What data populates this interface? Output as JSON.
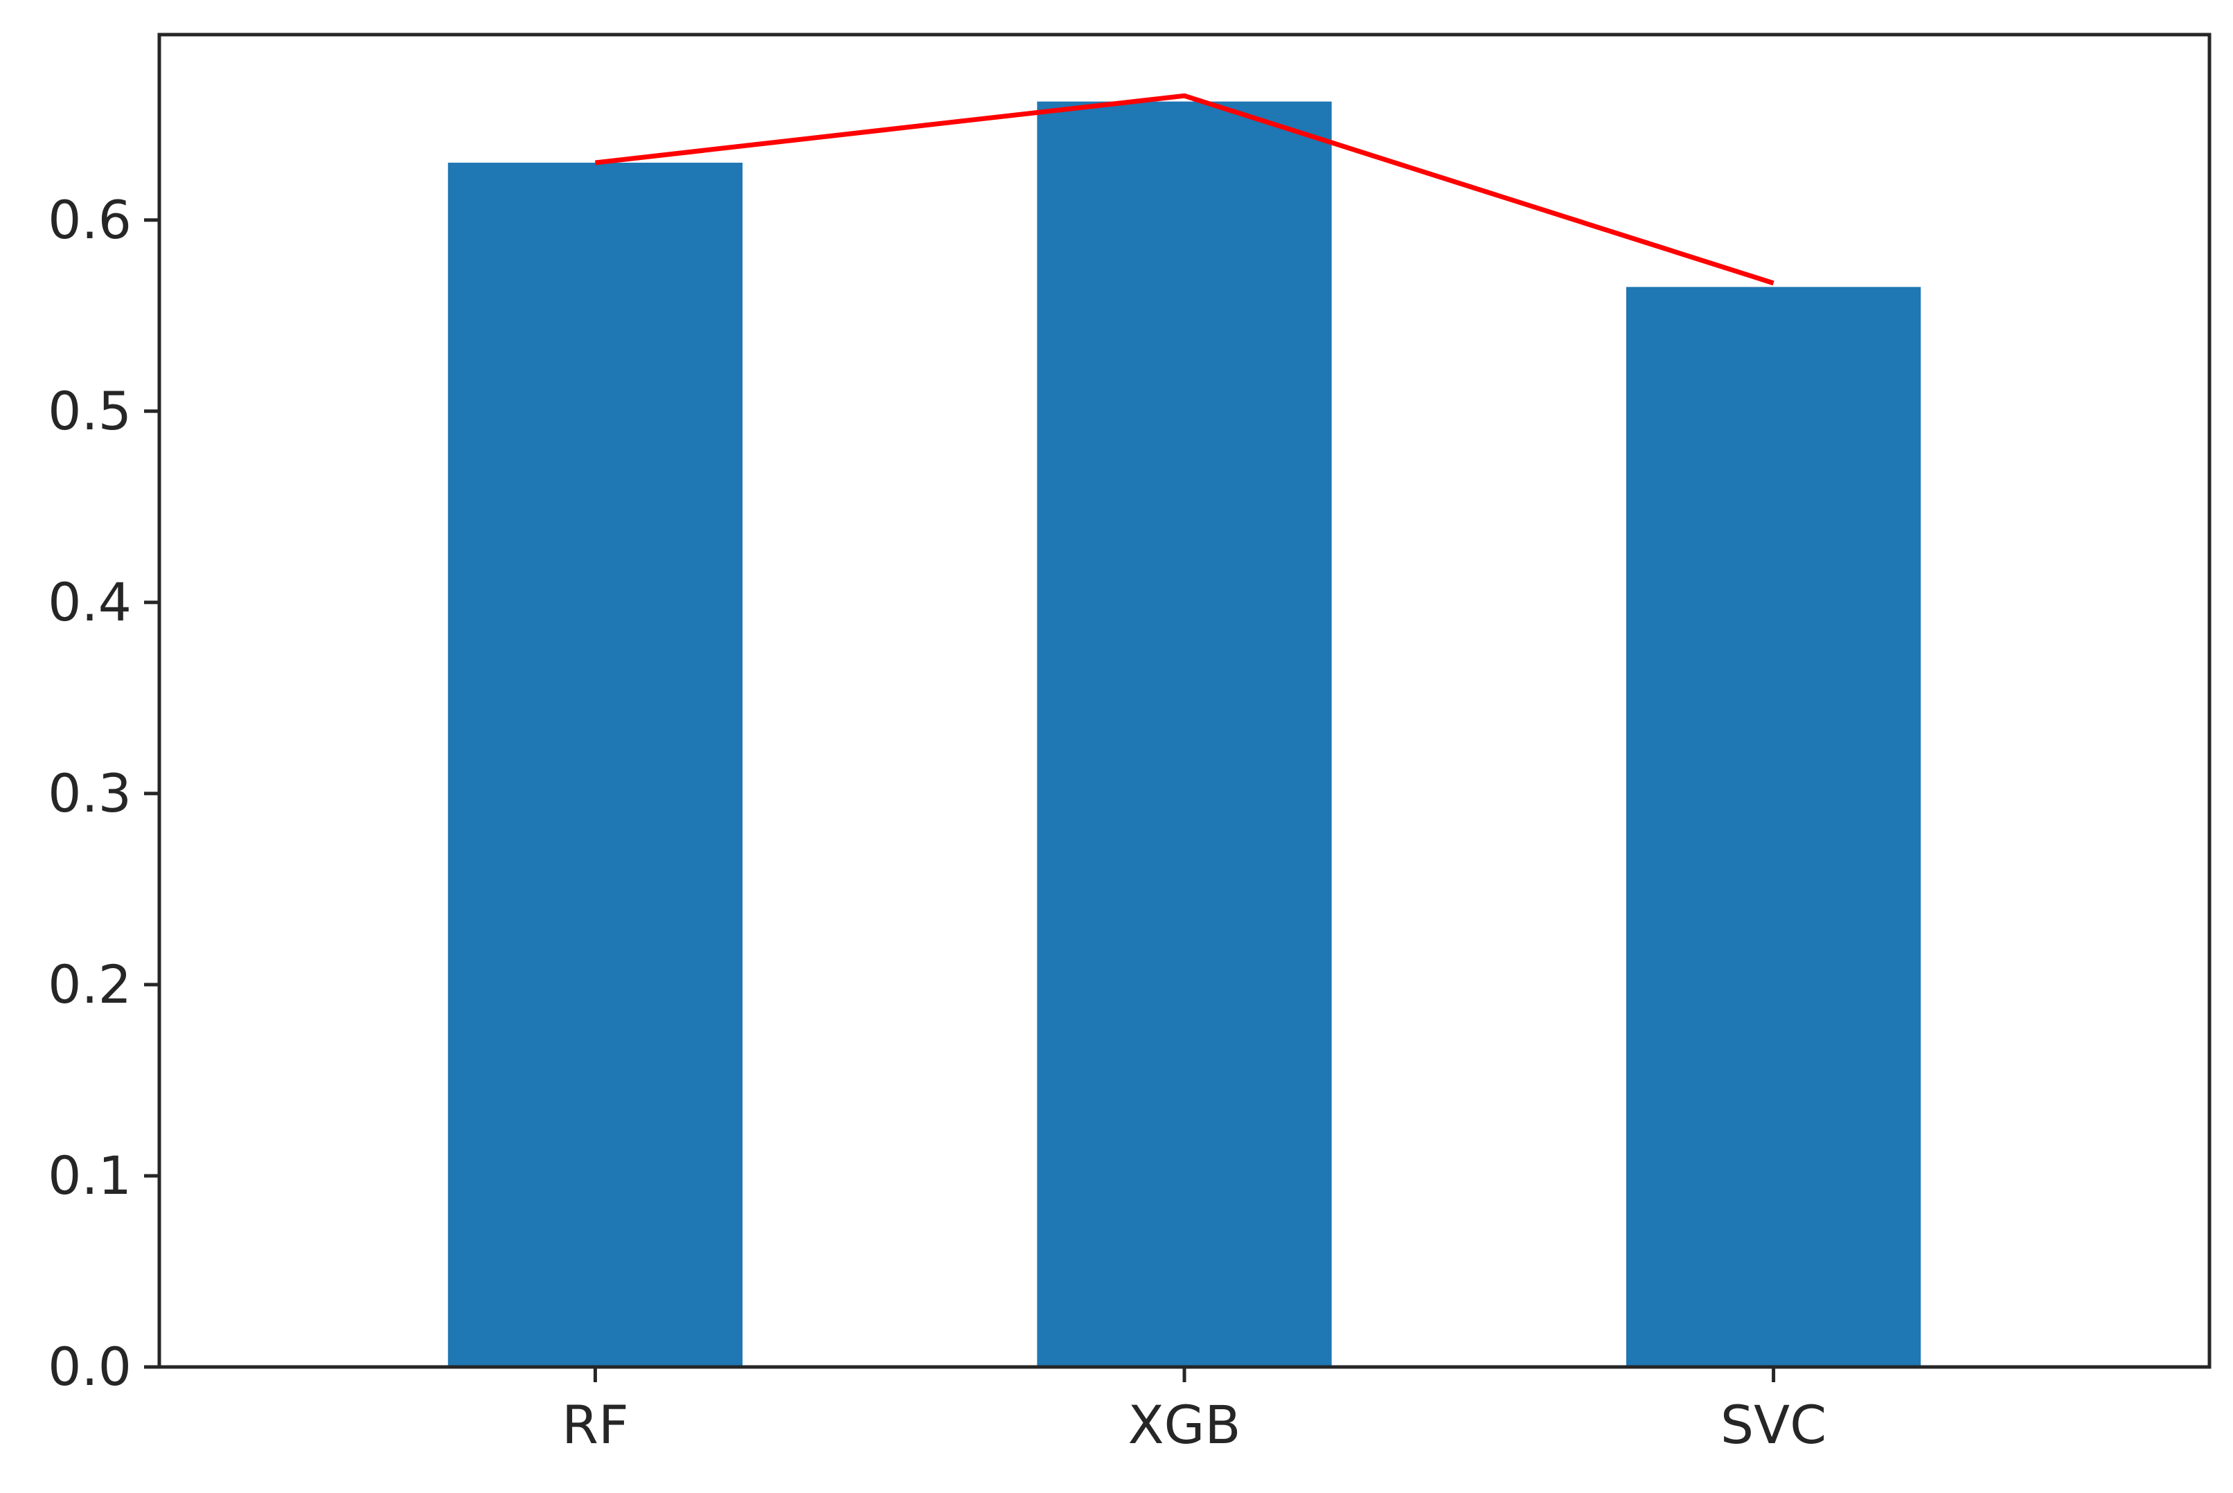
{
  "chart_data": {
    "type": "bar",
    "categories": [
      "RF",
      "XGB",
      "SVC"
    ],
    "values": [
      0.63,
      0.662,
      0.565
    ],
    "series": [
      {
        "type": "bar",
        "values": [
          0.63,
          0.662,
          0.565
        ]
      },
      {
        "type": "line",
        "values": [
          0.63,
          0.665,
          0.567
        ]
      }
    ],
    "title": "",
    "xlabel": "",
    "ylabel": "",
    "ylim": [
      0,
      0.697
    ],
    "yticks": [
      0.0,
      0.1,
      0.2,
      0.3,
      0.4,
      0.5,
      0.6
    ],
    "ytick_labels": [
      "0.0",
      "0.1",
      "0.2",
      "0.3",
      "0.4",
      "0.5",
      "0.6"
    ],
    "grid": false,
    "legend": "none",
    "colors": {
      "bar": "#1f77b4",
      "line": "#ff0000",
      "axis": "#262626"
    }
  }
}
